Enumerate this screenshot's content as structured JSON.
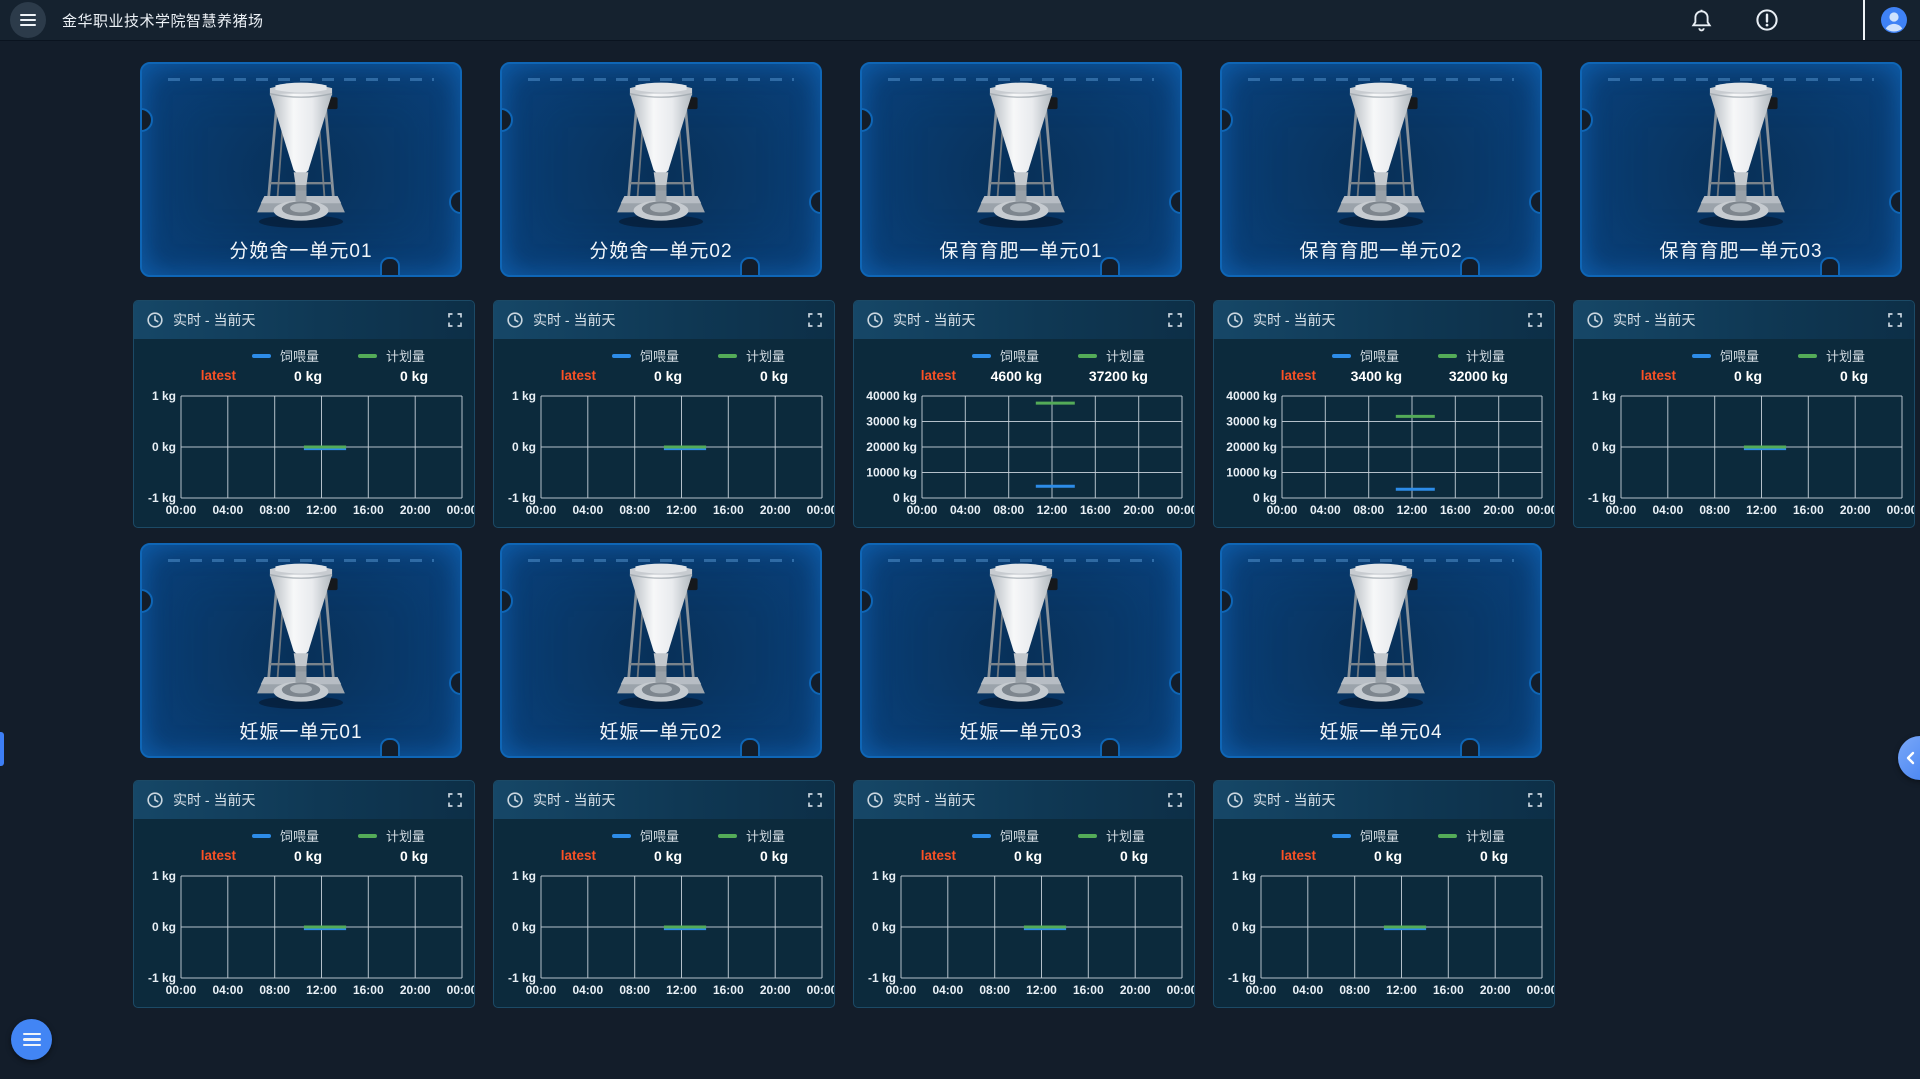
{
  "header": {
    "title": "金华职业技术学院智慧养猪场",
    "icons": {
      "menu": "hamburger-icon",
      "notifications": "bell-icon",
      "alerts": "exclamation-circle-icon",
      "user": "avatar-icon"
    }
  },
  "colors": {
    "page_background": "#131d2a",
    "card_border": "#0f66b6",
    "panel_background": "#0c2a3c",
    "feed_series": "#2d8ce8",
    "plan_series": "#54ab58",
    "latest_label": "#fb5125",
    "accent_blue": "#4285f4"
  },
  "sections": [
    {
      "cards": [
        {
          "label": "分娩舍一单元01"
        },
        {
          "label": "分娩舍一单元02"
        },
        {
          "label": "保育育肥一单元01"
        },
        {
          "label": "保育育肥一单元02"
        },
        {
          "label": "保育育肥一单元03"
        }
      ],
      "panels": [
        {
          "title": "实时 - 当前天",
          "latest_label": "latest",
          "series": [
            {
              "name": "饲喂量",
              "color": "#2d8ce8",
              "latest": "0 kg",
              "value": 0
            },
            {
              "name": "计划量",
              "color": "#54ab58",
              "latest": "0 kg",
              "value": 0
            }
          ],
          "chart_data": {
            "type": "line",
            "x_ticks": [
              "00:00",
              "04:00",
              "08:00",
              "12:00",
              "16:00",
              "20:00",
              "00:00"
            ],
            "x_range_hours": [
              0,
              24
            ],
            "segment_hours": [
              10.5,
              14.1
            ],
            "ylim": [
              -1,
              1
            ],
            "y_ticks": [
              {
                "v": 1,
                "label": "1 kg"
              },
              {
                "v": 0,
                "label": "0 kg"
              },
              {
                "v": -1,
                "label": "-1 kg"
              }
            ]
          }
        },
        {
          "title": "实时 - 当前天",
          "latest_label": "latest",
          "series": [
            {
              "name": "饲喂量",
              "color": "#2d8ce8",
              "latest": "0 kg",
              "value": 0
            },
            {
              "name": "计划量",
              "color": "#54ab58",
              "latest": "0 kg",
              "value": 0
            }
          ],
          "chart_data": {
            "type": "line",
            "x_ticks": [
              "00:00",
              "04:00",
              "08:00",
              "12:00",
              "16:00",
              "20:00",
              "00:00"
            ],
            "x_range_hours": [
              0,
              24
            ],
            "segment_hours": [
              10.5,
              14.1
            ],
            "ylim": [
              -1,
              1
            ],
            "y_ticks": [
              {
                "v": 1,
                "label": "1 kg"
              },
              {
                "v": 0,
                "label": "0 kg"
              },
              {
                "v": -1,
                "label": "-1 kg"
              }
            ]
          }
        },
        {
          "title": "实时 - 当前天",
          "latest_label": "latest",
          "series": [
            {
              "name": "饲喂量",
              "color": "#2d8ce8",
              "latest": "4600 kg",
              "value": 4600
            },
            {
              "name": "计划量",
              "color": "#54ab58",
              "latest": "37200 kg",
              "value": 37200
            }
          ],
          "chart_data": {
            "type": "line",
            "x_ticks": [
              "00:00",
              "04:00",
              "08:00",
              "12:00",
              "16:00",
              "20:00",
              "00:00"
            ],
            "x_range_hours": [
              0,
              24
            ],
            "segment_hours": [
              10.5,
              14.1
            ],
            "ylim": [
              0,
              40000
            ],
            "y_ticks": [
              {
                "v": 40000,
                "label": "40000 kg"
              },
              {
                "v": 30000,
                "label": "30000 kg"
              },
              {
                "v": 20000,
                "label": "20000 kg"
              },
              {
                "v": 10000,
                "label": "10000 kg"
              },
              {
                "v": 0,
                "label": "0 kg"
              }
            ]
          }
        },
        {
          "title": "实时 - 当前天",
          "latest_label": "latest",
          "series": [
            {
              "name": "饲喂量",
              "color": "#2d8ce8",
              "latest": "3400 kg",
              "value": 3400
            },
            {
              "name": "计划量",
              "color": "#54ab58",
              "latest": "32000 kg",
              "value": 32000
            }
          ],
          "chart_data": {
            "type": "line",
            "x_ticks": [
              "00:00",
              "04:00",
              "08:00",
              "12:00",
              "16:00",
              "20:00",
              "00:00"
            ],
            "x_range_hours": [
              0,
              24
            ],
            "segment_hours": [
              10.5,
              14.1
            ],
            "ylim": [
              0,
              40000
            ],
            "y_ticks": [
              {
                "v": 40000,
                "label": "40000 kg"
              },
              {
                "v": 30000,
                "label": "30000 kg"
              },
              {
                "v": 20000,
                "label": "20000 kg"
              },
              {
                "v": 10000,
                "label": "10000 kg"
              },
              {
                "v": 0,
                "label": "0 kg"
              }
            ]
          }
        },
        {
          "title": "实时 - 当前天",
          "latest_label": "latest",
          "series": [
            {
              "name": "饲喂量",
              "color": "#2d8ce8",
              "latest": "0 kg",
              "value": 0
            },
            {
              "name": "计划量",
              "color": "#54ab58",
              "latest": "0 kg",
              "value": 0
            }
          ],
          "chart_data": {
            "type": "line",
            "x_ticks": [
              "00:00",
              "04:00",
              "08:00",
              "12:00",
              "16:00",
              "20:00",
              "00:00"
            ],
            "x_range_hours": [
              0,
              24
            ],
            "segment_hours": [
              10.5,
              14.1
            ],
            "ylim": [
              -1,
              1
            ],
            "y_ticks": [
              {
                "v": 1,
                "label": "1 kg"
              },
              {
                "v": 0,
                "label": "0 kg"
              },
              {
                "v": -1,
                "label": "-1 kg"
              }
            ]
          }
        }
      ]
    },
    {
      "cards": [
        {
          "label": "妊娠一单元01"
        },
        {
          "label": "妊娠一单元02"
        },
        {
          "label": "妊娠一单元03"
        },
        {
          "label": "妊娠一单元04"
        }
      ],
      "panels": [
        {
          "title": "实时 - 当前天",
          "latest_label": "latest",
          "series": [
            {
              "name": "饲喂量",
              "color": "#2d8ce8",
              "latest": "0 kg",
              "value": 0
            },
            {
              "name": "计划量",
              "color": "#54ab58",
              "latest": "0 kg",
              "value": 0
            }
          ],
          "chart_data": {
            "type": "line",
            "x_ticks": [
              "00:00",
              "04:00",
              "08:00",
              "12:00",
              "16:00",
              "20:00",
              "00:00"
            ],
            "x_range_hours": [
              0,
              24
            ],
            "segment_hours": [
              10.5,
              14.1
            ],
            "ylim": [
              -1,
              1
            ],
            "y_ticks": [
              {
                "v": 1,
                "label": "1 kg"
              },
              {
                "v": 0,
                "label": "0 kg"
              },
              {
                "v": -1,
                "label": "-1 kg"
              }
            ]
          }
        },
        {
          "title": "实时 - 当前天",
          "latest_label": "latest",
          "series": [
            {
              "name": "饲喂量",
              "color": "#2d8ce8",
              "latest": "0 kg",
              "value": 0
            },
            {
              "name": "计划量",
              "color": "#54ab58",
              "latest": "0 kg",
              "value": 0
            }
          ],
          "chart_data": {
            "type": "line",
            "x_ticks": [
              "00:00",
              "04:00",
              "08:00",
              "12:00",
              "16:00",
              "20:00",
              "00:00"
            ],
            "x_range_hours": [
              0,
              24
            ],
            "segment_hours": [
              10.5,
              14.1
            ],
            "ylim": [
              -1,
              1
            ],
            "y_ticks": [
              {
                "v": 1,
                "label": "1 kg"
              },
              {
                "v": 0,
                "label": "0 kg"
              },
              {
                "v": -1,
                "label": "-1 kg"
              }
            ]
          }
        },
        {
          "title": "实时 - 当前天",
          "latest_label": "latest",
          "series": [
            {
              "name": "饲喂量",
              "color": "#2d8ce8",
              "latest": "0 kg",
              "value": 0
            },
            {
              "name": "计划量",
              "color": "#54ab58",
              "latest": "0 kg",
              "value": 0
            }
          ],
          "chart_data": {
            "type": "line",
            "x_ticks": [
              "00:00",
              "04:00",
              "08:00",
              "12:00",
              "16:00",
              "20:00",
              "00:00"
            ],
            "x_range_hours": [
              0,
              24
            ],
            "segment_hours": [
              10.5,
              14.1
            ],
            "ylim": [
              -1,
              1
            ],
            "y_ticks": [
              {
                "v": 1,
                "label": "1 kg"
              },
              {
                "v": 0,
                "label": "0 kg"
              },
              {
                "v": -1,
                "label": "-1 kg"
              }
            ]
          }
        },
        {
          "title": "实时 - 当前天",
          "latest_label": "latest",
          "series": [
            {
              "name": "饲喂量",
              "color": "#2d8ce8",
              "latest": "0 kg",
              "value": 0
            },
            {
              "name": "计划量",
              "color": "#54ab58",
              "latest": "0 kg",
              "value": 0
            }
          ],
          "chart_data": {
            "type": "line",
            "x_ticks": [
              "00:00",
              "04:00",
              "08:00",
              "12:00",
              "16:00",
              "20:00",
              "00:00"
            ],
            "x_range_hours": [
              0,
              24
            ],
            "segment_hours": [
              10.5,
              14.1
            ],
            "ylim": [
              -1,
              1
            ],
            "y_ticks": [
              {
                "v": 1,
                "label": "1 kg"
              },
              {
                "v": 0,
                "label": "0 kg"
              },
              {
                "v": -1,
                "label": "-1 kg"
              }
            ]
          }
        }
      ]
    }
  ]
}
